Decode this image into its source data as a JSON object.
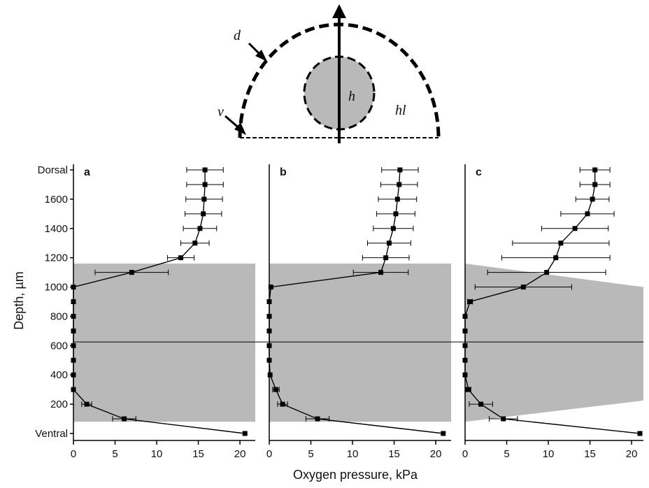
{
  "diagram": {
    "labels": {
      "d": "d",
      "v": "v",
      "h": "h",
      "hl": "hl"
    },
    "colors": {
      "fill": "#b9b9b9",
      "stroke": "#000000"
    }
  },
  "chart_data": {
    "type": "line",
    "ylabel": "Depth, µm",
    "xlabel": "Oxygen pressure, kPa",
    "ylim": [
      0,
      1800
    ],
    "xlim": [
      0,
      21
    ],
    "y_ticks": [
      {
        "value": 1800,
        "label": "Dorsal"
      },
      {
        "value": 1600,
        "label": "1600"
      },
      {
        "value": 1400,
        "label": "1400"
      },
      {
        "value": 1200,
        "label": "1200"
      },
      {
        "value": 1000,
        "label": "1000"
      },
      {
        "value": 800,
        "label": "800"
      },
      {
        "value": 600,
        "label": "600"
      },
      {
        "value": 400,
        "label": "400"
      },
      {
        "value": 200,
        "label": "200"
      },
      {
        "value": 0,
        "label": "Ventral"
      }
    ],
    "x_ticks": [
      0,
      5,
      10,
      15,
      20
    ],
    "reference_line_depth": 625,
    "colors": {
      "band": "#b9b9b9",
      "line": "#000000"
    },
    "panels": [
      {
        "label": "a",
        "band": {
          "top_left": 1160,
          "top_right": 1160,
          "bottom_left": 80,
          "bottom_right": 80
        },
        "points": [
          {
            "y": 1800,
            "x": 15.8,
            "err": 2.2
          },
          {
            "y": 1700,
            "x": 15.8,
            "err": 2.2
          },
          {
            "y": 1600,
            "x": 15.7,
            "err": 2.2
          },
          {
            "y": 1500,
            "x": 15.6,
            "err": 2.2
          },
          {
            "y": 1400,
            "x": 15.2,
            "err": 2.0
          },
          {
            "y": 1300,
            "x": 14.6,
            "err": 1.7
          },
          {
            "y": 1200,
            "x": 12.9,
            "err": 1.6
          },
          {
            "y": 1100,
            "x": 7.0,
            "err": 4.4
          },
          {
            "y": 1000,
            "x": 0.0,
            "err": 0
          },
          {
            "y": 900,
            "x": 0.0,
            "err": 0
          },
          {
            "y": 800,
            "x": 0.0,
            "err": 0
          },
          {
            "y": 700,
            "x": 0.0,
            "err": 0
          },
          {
            "y": 600,
            "x": 0.0,
            "err": 0
          },
          {
            "y": 500,
            "x": 0.0,
            "err": 0
          },
          {
            "y": 400,
            "x": 0.0,
            "err": 0
          },
          {
            "y": 300,
            "x": 0.0,
            "err": 0
          },
          {
            "y": 200,
            "x": 1.6,
            "err": 0.6
          },
          {
            "y": 100,
            "x": 6.1,
            "err": 1.4
          },
          {
            "y": 0,
            "x": 20.6,
            "err": 0
          }
        ]
      },
      {
        "label": "b",
        "band": {
          "top_left": 1160,
          "top_right": 1160,
          "bottom_left": 80,
          "bottom_right": 80
        },
        "points": [
          {
            "y": 1800,
            "x": 15.7,
            "err": 2.2
          },
          {
            "y": 1700,
            "x": 15.6,
            "err": 2.2
          },
          {
            "y": 1600,
            "x": 15.4,
            "err": 2.3
          },
          {
            "y": 1500,
            "x": 15.2,
            "err": 2.3
          },
          {
            "y": 1400,
            "x": 14.9,
            "err": 2.4
          },
          {
            "y": 1300,
            "x": 14.4,
            "err": 2.6
          },
          {
            "y": 1200,
            "x": 14.0,
            "err": 2.8
          },
          {
            "y": 1100,
            "x": 13.4,
            "err": 3.3
          },
          {
            "y": 1000,
            "x": 0.2,
            "err": 0
          },
          {
            "y": 900,
            "x": 0.0,
            "err": 0
          },
          {
            "y": 800,
            "x": 0.0,
            "err": 0
          },
          {
            "y": 700,
            "x": 0.0,
            "err": 0
          },
          {
            "y": 600,
            "x": 0.0,
            "err": 0
          },
          {
            "y": 500,
            "x": 0.0,
            "err": 0
          },
          {
            "y": 400,
            "x": 0.1,
            "err": 0
          },
          {
            "y": 300,
            "x": 0.8,
            "err": 0.4
          },
          {
            "y": 200,
            "x": 1.6,
            "err": 0.6
          },
          {
            "y": 100,
            "x": 5.8,
            "err": 1.4
          },
          {
            "y": 0,
            "x": 20.9,
            "err": 0
          }
        ]
      },
      {
        "label": "c",
        "band": {
          "top_left": 1160,
          "top_right": 1000,
          "bottom_left": 80,
          "bottom_right": 225
        },
        "points": [
          {
            "y": 1800,
            "x": 15.6,
            "err": 1.8
          },
          {
            "y": 1700,
            "x": 15.6,
            "err": 1.8
          },
          {
            "y": 1600,
            "x": 15.3,
            "err": 2.0
          },
          {
            "y": 1500,
            "x": 14.7,
            "err": 3.2
          },
          {
            "y": 1400,
            "x": 13.2,
            "err": 4.0
          },
          {
            "y": 1300,
            "x": 11.5,
            "err": 5.8
          },
          {
            "y": 1200,
            "x": 10.9,
            "err": 6.5
          },
          {
            "y": 1100,
            "x": 9.8,
            "err": 7.1
          },
          {
            "y": 1000,
            "x": 7.0,
            "err": 5.8
          },
          {
            "y": 900,
            "x": 0.6,
            "err": 0.3
          },
          {
            "y": 800,
            "x": 0.0,
            "err": 0
          },
          {
            "y": 700,
            "x": 0.0,
            "err": 0
          },
          {
            "y": 600,
            "x": 0.0,
            "err": 0
          },
          {
            "y": 500,
            "x": 0.0,
            "err": 0
          },
          {
            "y": 400,
            "x": 0.0,
            "err": 0
          },
          {
            "y": 300,
            "x": 0.4,
            "err": 0.3
          },
          {
            "y": 200,
            "x": 1.9,
            "err": 1.4
          },
          {
            "y": 100,
            "x": 4.6,
            "err": 1.7
          },
          {
            "y": 0,
            "x": 21.0,
            "err": 0
          }
        ]
      }
    ]
  }
}
